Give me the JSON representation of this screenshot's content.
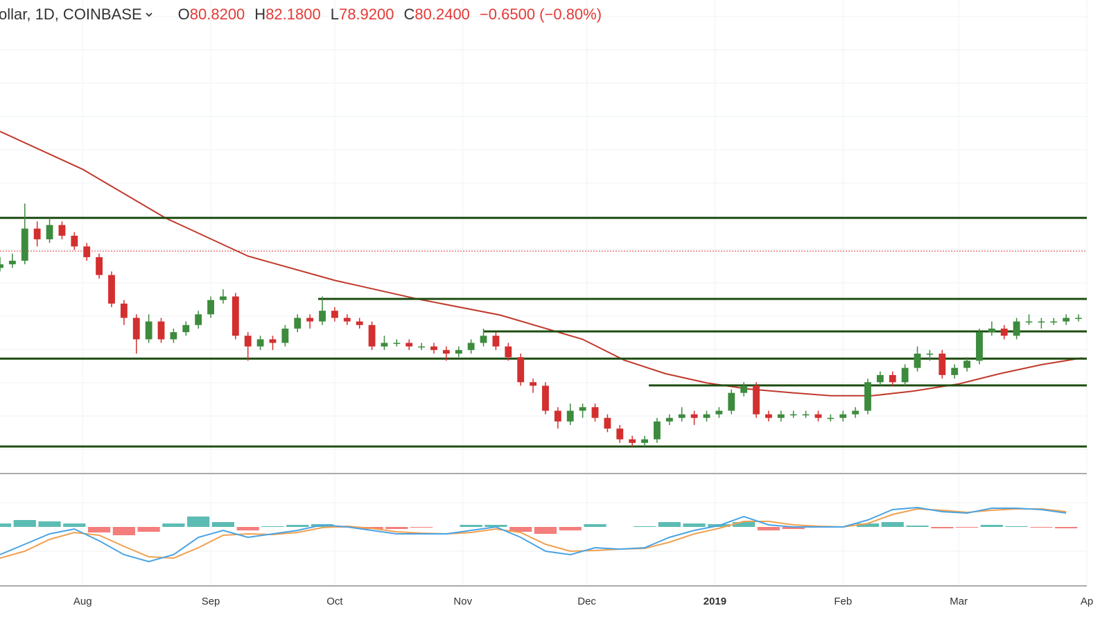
{
  "header": {
    "symbol": "ollar, 1D, COINBASE",
    "value_color": "#e53935",
    "ohlc": [
      {
        "key": "O",
        "value": "80.8200"
      },
      {
        "key": "H",
        "value": "82.1800"
      },
      {
        "key": "L",
        "value": "78.9200"
      },
      {
        "key": "C",
        "value": "80.2400"
      }
    ],
    "change": "−0.6500 (−0.80%)"
  },
  "chart_data": {
    "type": "candlestick",
    "xlim": [
      0,
      263
    ],
    "ylim": [
      16,
      148
    ],
    "xticks": [
      {
        "value": 20,
        "label": "Aug"
      },
      {
        "value": 51,
        "label": "Sep"
      },
      {
        "value": 81,
        "label": "Oct"
      },
      {
        "value": 112,
        "label": "Nov"
      },
      {
        "value": 142,
        "label": "Dec"
      },
      {
        "value": 173,
        "label": "2019"
      },
      {
        "value": 204,
        "label": "Feb"
      },
      {
        "value": 232,
        "label": "Mar"
      },
      {
        "value": 263,
        "label": "Ap"
      }
    ],
    "grid": true,
    "up_color": "#3d8b3d",
    "down_color": "#d32f2f",
    "x": [
      0,
      3,
      6,
      9,
      12,
      15,
      18,
      21,
      24,
      27,
      30,
      33,
      36,
      39,
      42,
      45,
      48,
      51,
      54,
      57,
      60,
      63,
      66,
      69,
      72,
      75,
      78,
      81,
      84,
      87,
      90,
      93,
      96,
      99,
      102,
      105,
      108,
      111,
      114,
      117,
      120,
      123,
      126,
      129,
      132,
      135,
      138,
      141,
      144,
      147,
      150,
      153,
      156,
      159,
      162,
      165,
      168,
      171,
      174,
      177,
      180,
      183,
      186,
      189,
      192,
      195,
      198,
      201,
      204,
      207,
      210,
      213,
      216,
      219,
      222,
      225,
      228,
      231,
      234,
      237,
      240,
      243,
      246,
      249,
      252,
      255,
      258,
      261
    ],
    "candles": [
      [
        73,
        76,
        72,
        74
      ],
      [
        74,
        77,
        73,
        75
      ],
      [
        75,
        91,
        74,
        84
      ],
      [
        84,
        86,
        79,
        81
      ],
      [
        81,
        87,
        80,
        85
      ],
      [
        85,
        86,
        81,
        82
      ],
      [
        82,
        83,
        78,
        79
      ],
      [
        79,
        80,
        75,
        76
      ],
      [
        76,
        77,
        70,
        71
      ],
      [
        71,
        72,
        62,
        63
      ],
      [
        63,
        64,
        57,
        59
      ],
      [
        59,
        60,
        49,
        53
      ],
      [
        53,
        60,
        52,
        58
      ],
      [
        58,
        59,
        52,
        53
      ],
      [
        53,
        56,
        52,
        55
      ],
      [
        55,
        58,
        54,
        57
      ],
      [
        57,
        61,
        56,
        60
      ],
      [
        60,
        65,
        59,
        64
      ],
      [
        64,
        67,
        63,
        65
      ],
      [
        65,
        66,
        53,
        54
      ],
      [
        54,
        55,
        47,
        51
      ],
      [
        51,
        54,
        50,
        53
      ],
      [
        53,
        54,
        50,
        52
      ],
      [
        52,
        57,
        51,
        56
      ],
      [
        56,
        60,
        55,
        59
      ],
      [
        59,
        60,
        56,
        58
      ],
      [
        58,
        65,
        57,
        61
      ],
      [
        61,
        62,
        58,
        59
      ],
      [
        59,
        60,
        57,
        58
      ],
      [
        58,
        59,
        56,
        57
      ],
      [
        57,
        58,
        50,
        51
      ],
      [
        51,
        54,
        50,
        52
      ],
      [
        52,
        53,
        51,
        52
      ],
      [
        52,
        53,
        50,
        51
      ],
      [
        51,
        52,
        50,
        51
      ],
      [
        51,
        52,
        49,
        50
      ],
      [
        50,
        51,
        47,
        49
      ],
      [
        49,
        51,
        48,
        50
      ],
      [
        50,
        53,
        49,
        52
      ],
      [
        52,
        56,
        51,
        54
      ],
      [
        54,
        55,
        50,
        51
      ],
      [
        51,
        52,
        47,
        48
      ],
      [
        48,
        49,
        40,
        41
      ],
      [
        41,
        42,
        38,
        40
      ],
      [
        40,
        41,
        32,
        33
      ],
      [
        33,
        34,
        28,
        30
      ],
      [
        30,
        35,
        29,
        33
      ],
      [
        33,
        35,
        31,
        34
      ],
      [
        34,
        35,
        30,
        31
      ],
      [
        31,
        32,
        27,
        28
      ],
      [
        28,
        29,
        24,
        25
      ],
      [
        25,
        26,
        23,
        24
      ],
      [
        24,
        26,
        23,
        25
      ],
      [
        25,
        31,
        24,
        30
      ],
      [
        30,
        32,
        29,
        31
      ],
      [
        31,
        34,
        30,
        32
      ],
      [
        32,
        33,
        29,
        31
      ],
      [
        31,
        33,
        30,
        32
      ],
      [
        32,
        34,
        31,
        33
      ],
      [
        33,
        39,
        32,
        38
      ],
      [
        38,
        41,
        37,
        40
      ],
      [
        40,
        41,
        31,
        32
      ],
      [
        32,
        33,
        30,
        31
      ],
      [
        31,
        33,
        30,
        32
      ],
      [
        32,
        33,
        31,
        32
      ],
      [
        32,
        33,
        31,
        32
      ],
      [
        32,
        33,
        30,
        31
      ],
      [
        31,
        32,
        30,
        31
      ],
      [
        31,
        33,
        30,
        32
      ],
      [
        32,
        34,
        31,
        33
      ],
      [
        33,
        42,
        32,
        41
      ],
      [
        41,
        44,
        40,
        43
      ],
      [
        43,
        44,
        40,
        41
      ],
      [
        41,
        46,
        40,
        45
      ],
      [
        45,
        51,
        44,
        49
      ],
      [
        49,
        50,
        47,
        49
      ],
      [
        49,
        50,
        42,
        43
      ],
      [
        43,
        46,
        42,
        45
      ],
      [
        45,
        48,
        44,
        47
      ],
      [
        47,
        56,
        46,
        55
      ],
      [
        55,
        58,
        54,
        56
      ],
      [
        56,
        57,
        53,
        54
      ],
      [
        54,
        59,
        53,
        58
      ],
      [
        58,
        60,
        57,
        58
      ],
      [
        58,
        59,
        56,
        58
      ],
      [
        58,
        59,
        57,
        58
      ],
      [
        58,
        60,
        57,
        59
      ],
      [
        59,
        60,
        58,
        59
      ]
    ],
    "ma": {
      "color": "#c0392b",
      "x": [
        0,
        20,
        40,
        60,
        81,
        101,
        121,
        141,
        151,
        161,
        171,
        181,
        191,
        201,
        211,
        221,
        232,
        242,
        252,
        262
      ],
      "values": [
        111.2,
        100.6,
        87,
        76.3,
        69.5,
        64.3,
        59.8,
        53,
        47.2,
        43.4,
        40.8,
        39.1,
        38.1,
        37.2,
        37.2,
        38.5,
        40.5,
        43.4,
        45.9,
        47.8
      ]
    },
    "levels": {
      "color": "#1e4d12",
      "lines": [
        {
          "value": 87,
          "from": 0
        },
        {
          "value": 64.3,
          "from": 77
        },
        {
          "value": 55.2,
          "from": 117
        },
        {
          "value": 47.6,
          "from": 0
        },
        {
          "value": 40.1,
          "from": 157
        },
        {
          "value": 23,
          "from": 0
        }
      ]
    },
    "price_line": {
      "value": 77.7,
      "color": "#e53935"
    },
    "macd": {
      "ylim": [
        -8.5,
        7
      ],
      "x": [
        0,
        6,
        12,
        18,
        24,
        30,
        36,
        42,
        48,
        54,
        60,
        66,
        72,
        78,
        84,
        90,
        96,
        102,
        108,
        114,
        120,
        126,
        132,
        138,
        144,
        150,
        156,
        162,
        168,
        174,
        180,
        186,
        192,
        198,
        204,
        210,
        216,
        222,
        228,
        234,
        240,
        246,
        252,
        258
      ],
      "macd": {
        "color": "#4ba3e3",
        "values": [
          -4,
          -2.5,
          -1,
          -0.3,
          -2,
          -4,
          -5,
          -4,
          -1.5,
          -0.5,
          -1.5,
          -1,
          -0.5,
          0.3,
          0,
          -0.5,
          -1,
          -1,
          -1,
          -0.5,
          0,
          -1.5,
          -3.5,
          -4,
          -3,
          -3.2,
          -3,
          -1.5,
          -0.5,
          0.2,
          1.5,
          0.3,
          0,
          0,
          0,
          1,
          2.5,
          2.8,
          2.2,
          2,
          2.7,
          2.7,
          2.5,
          2
        ]
      },
      "signal": {
        "color": "#f0a050",
        "values": [
          -4.5,
          -3.5,
          -1.8,
          -0.8,
          -1.2,
          -2.8,
          -4.3,
          -4.5,
          -3,
          -1.2,
          -1,
          -1.1,
          -0.8,
          -0.1,
          0.1,
          -0.2,
          -0.7,
          -0.9,
          -1,
          -0.8,
          -0.3,
          -0.8,
          -2.5,
          -3.5,
          -3.4,
          -3.2,
          -3.1,
          -2.2,
          -1,
          -0.2,
          0.8,
          0.8,
          0.3,
          0.1,
          0,
          0.5,
          1.8,
          2.6,
          2.4,
          2.1,
          2.4,
          2.6,
          2.6,
          2.2
        ]
      },
      "histogram": {
        "up_color": "#26a69a",
        "down_color": "#ef5350",
        "values": [
          0.5,
          1,
          0.8,
          0.5,
          -0.8,
          -1.2,
          -0.7,
          0.5,
          1.5,
          0.7,
          -0.5,
          0.1,
          0.3,
          0.4,
          -0.1,
          -0.3,
          -0.3,
          -0.1,
          0,
          0.3,
          0.3,
          -0.7,
          -1,
          -0.5,
          0.4,
          0,
          0.1,
          0.7,
          0.5,
          0.4,
          0.7,
          -0.5,
          -0.3,
          -0.1,
          0,
          0.5,
          0.7,
          0.2,
          -0.2,
          -0.1,
          0.3,
          0.1,
          -0.1,
          -0.2
        ]
      }
    }
  }
}
